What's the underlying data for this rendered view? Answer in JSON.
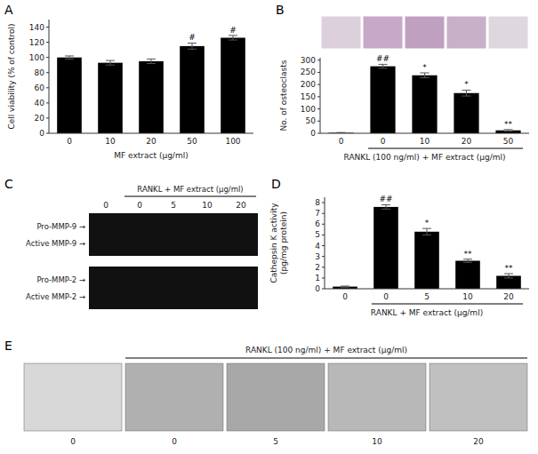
{
  "chart_data": [
    {
      "type": "bar",
      "title": "A",
      "categories": [
        "0",
        "10",
        "20",
        "50",
        "100"
      ],
      "values": [
        100,
        93,
        95,
        115,
        126
      ],
      "errors": [
        2,
        3,
        3,
        4,
        3
      ],
      "annotations": [
        null,
        null,
        null,
        "#",
        "#"
      ],
      "xlabel": "MF extract (μg/ml)",
      "ylabel": "Cell viability (% of control)",
      "ylim": [
        0,
        150
      ],
      "yticks": [
        0,
        20,
        40,
        60,
        80,
        100,
        120,
        140
      ],
      "color": "#000000",
      "grid": false
    },
    {
      "type": "bar",
      "title": "B",
      "categories": [
        "0",
        "0",
        "10",
        "20",
        "50"
      ],
      "values": [
        2,
        275,
        238,
        165,
        12
      ],
      "errors": [
        1,
        8,
        10,
        12,
        3
      ],
      "annotations": [
        null,
        "##",
        "*",
        "*",
        "**"
      ],
      "xlabel": "RANKL (100 ng/ml) + MF extract (μg/ml)",
      "ylabel": "No. of osteoclasts",
      "ylim": [
        0,
        310
      ],
      "yticks": [
        0,
        50,
        100,
        150,
        200,
        250,
        300
      ],
      "color": "#000000",
      "grid": false
    },
    {
      "type": "gel",
      "title": "C",
      "categories": [
        "0",
        "0",
        "5",
        "10",
        "20"
      ],
      "xlabel": "RANKL + MF extract (μg/ml)",
      "annotations": [
        "Pro-MMP-9 →",
        "Active MMP-9 →",
        "Pro-MMP-2 →",
        "Active MMP-2 →"
      ]
    },
    {
      "type": "bar",
      "title": "D",
      "categories": [
        "0",
        "0",
        "5",
        "10",
        "20"
      ],
      "values": [
        0.2,
        7.6,
        5.3,
        2.6,
        1.2
      ],
      "errors": [
        0.05,
        0.2,
        0.3,
        0.15,
        0.2
      ],
      "annotations": [
        null,
        "##",
        "*",
        "**",
        "**"
      ],
      "xlabel": "RANKL + MF extract (μg/ml)",
      "ylabel": "Cathepsin K activity\n(pg/mg protein)",
      "ylim": [
        0,
        8.5
      ],
      "yticks": [
        0,
        1,
        2,
        3,
        4,
        5,
        6,
        7,
        8
      ],
      "color": "#000000",
      "grid": false
    },
    {
      "type": "image",
      "title": "E",
      "categories": [
        "0",
        "0",
        "5",
        "10",
        "20"
      ],
      "xlabel": "RANKL (100 ng/ml) + MF extract (μg/ml)"
    }
  ]
}
